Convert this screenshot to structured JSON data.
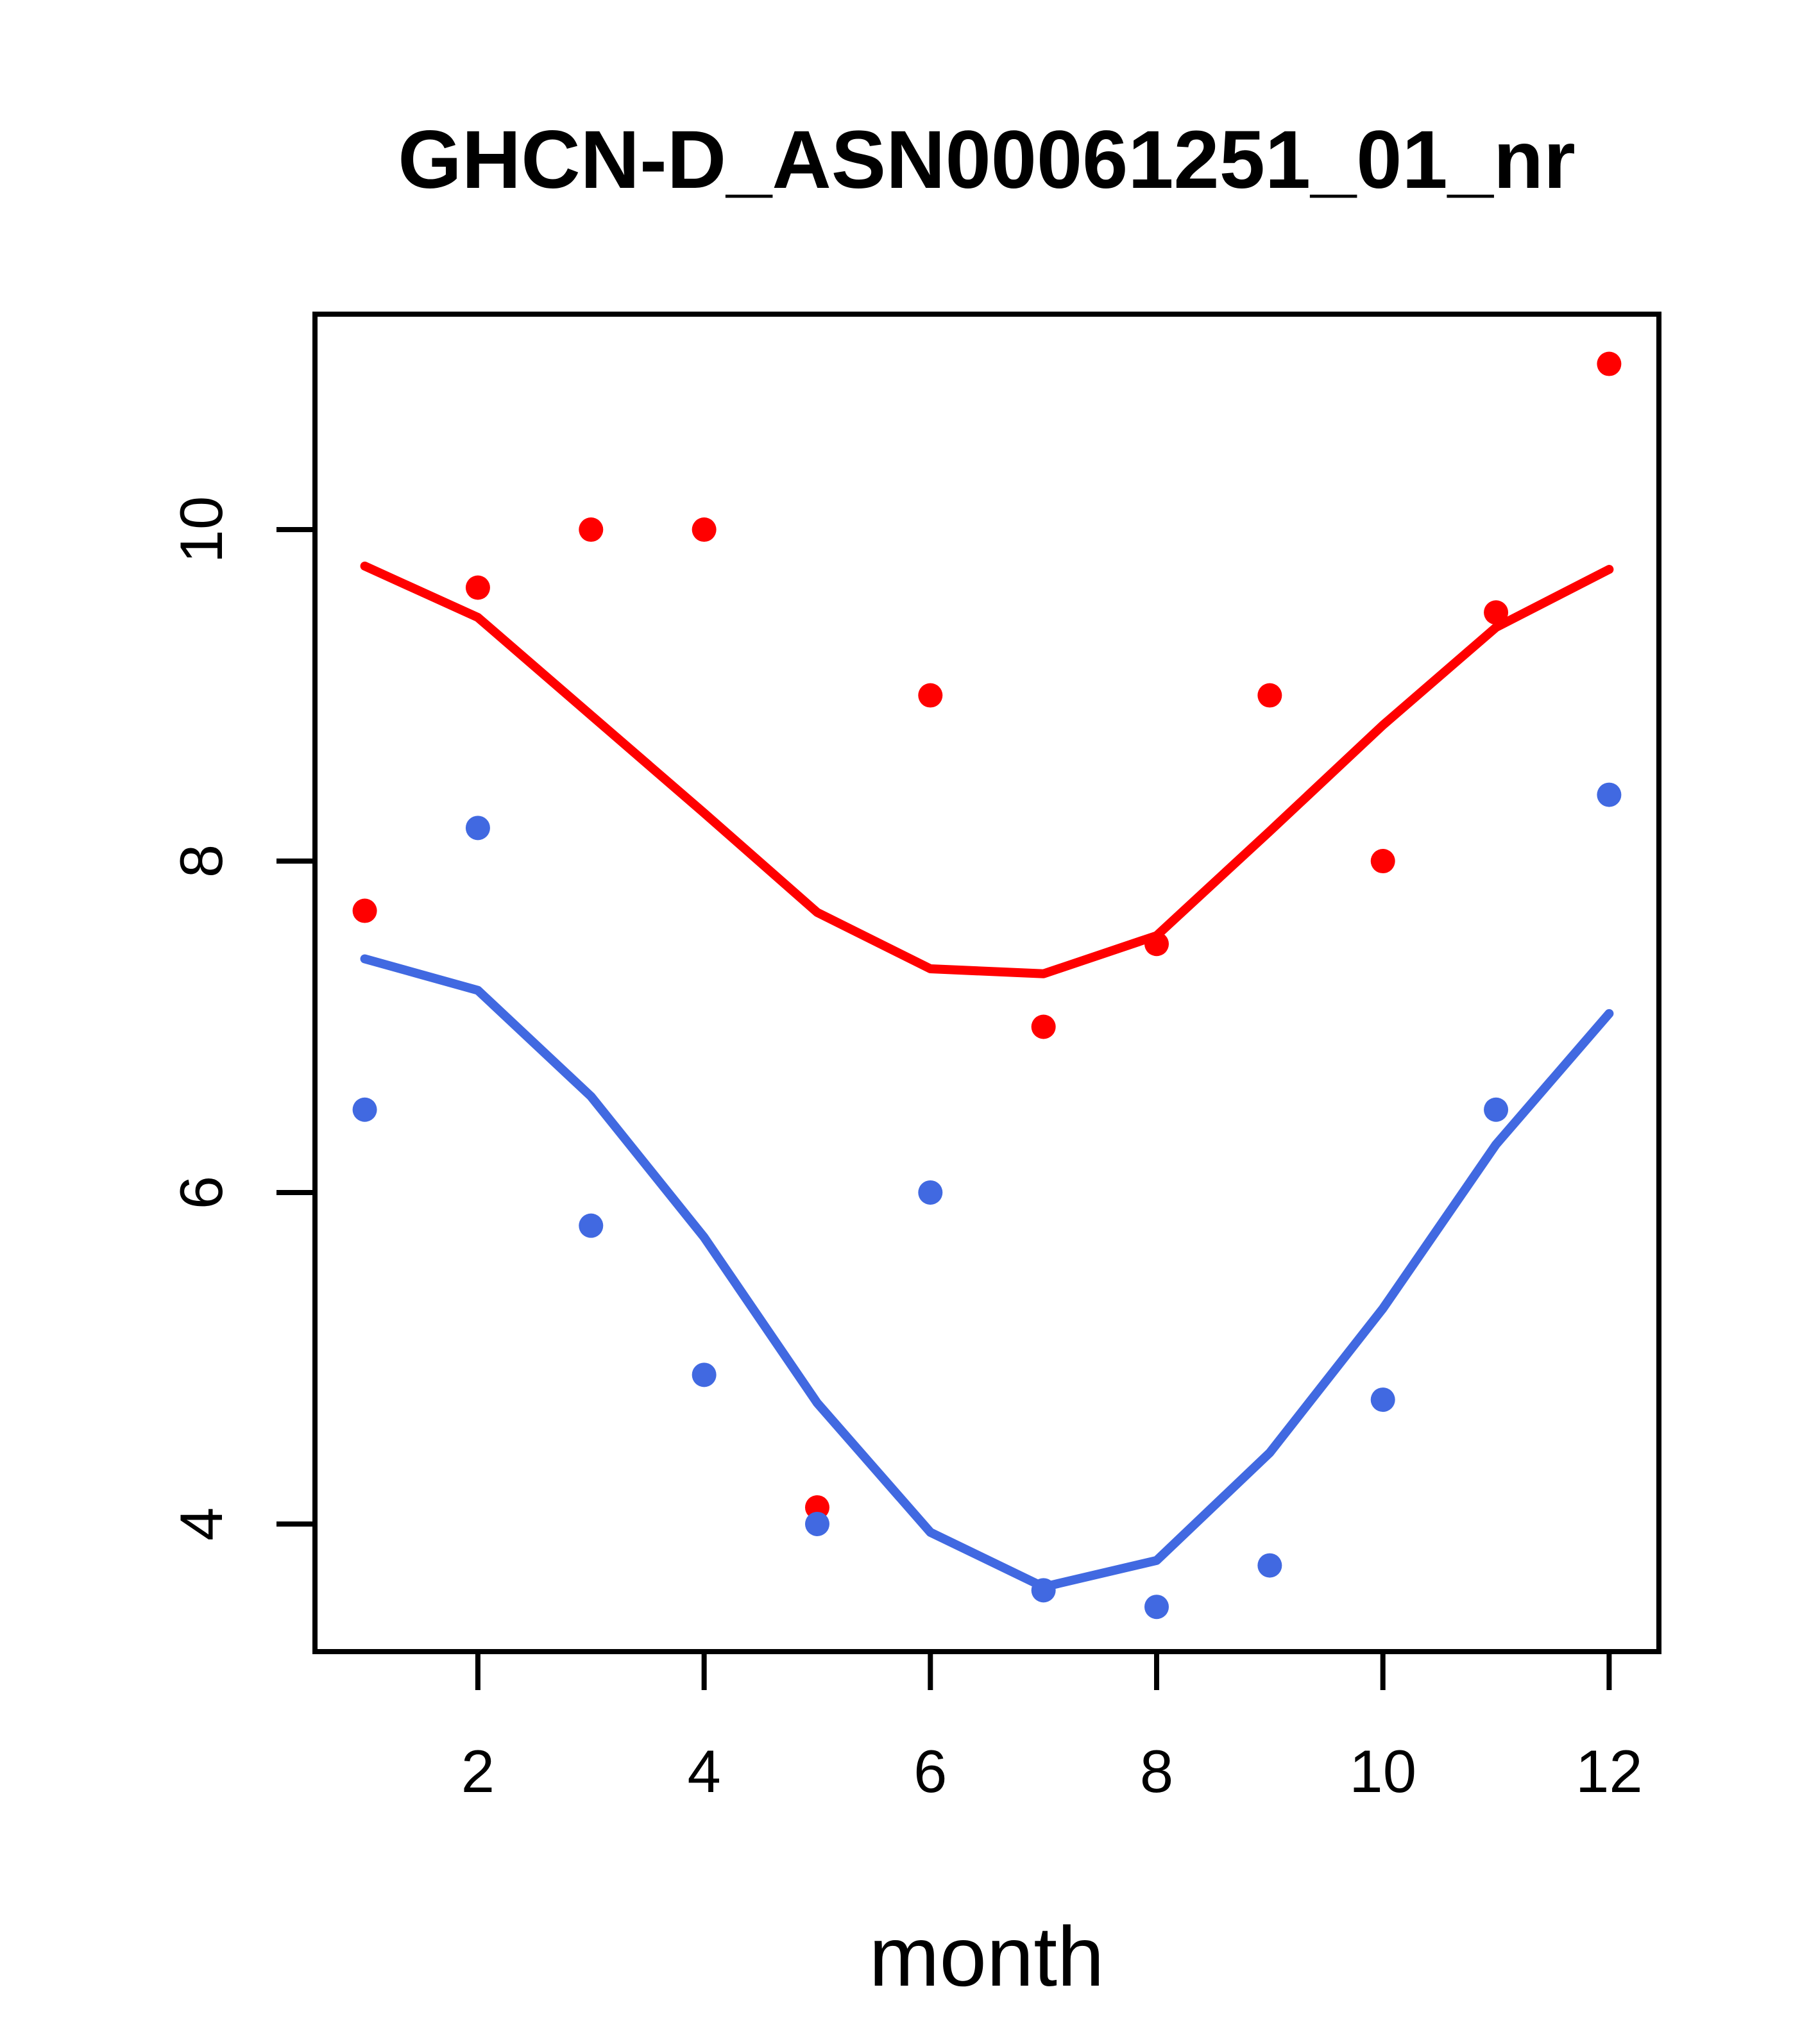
{
  "title": "GHCN-D_ASN00061251_01_nr",
  "xlabel": "month",
  "colors": {
    "red": "#FF0000",
    "blue": "#4169E1",
    "axis": "#000000",
    "background": "#FFFFFF"
  },
  "chart_data": {
    "type": "scatter",
    "title": "GHCN-D_ASN00061251_01_nr",
    "xlabel": "month",
    "ylabel": "",
    "x": [
      1,
      2,
      3,
      4,
      5,
      6,
      7,
      8,
      9,
      10,
      11,
      12
    ],
    "xticks": [
      2,
      4,
      6,
      8,
      10,
      12
    ],
    "yticks": [
      4,
      6,
      8,
      10
    ],
    "xlim": [
      0.56,
      12.44
    ],
    "ylim": [
      3.23,
      11.3
    ],
    "grid": false,
    "legend": "none",
    "series": [
      {
        "name": "red-points",
        "kind": "points",
        "color": "#FF0000",
        "values": [
          7.7,
          9.65,
          10.0,
          10.0,
          4.1,
          9.0,
          7.0,
          7.5,
          9.0,
          8.0,
          9.5,
          11.0
        ]
      },
      {
        "name": "blue-points",
        "kind": "points",
        "color": "#4169E1",
        "values": [
          6.5,
          8.2,
          5.8,
          4.9,
          4.0,
          6.0,
          3.6,
          3.5,
          3.75,
          4.75,
          6.5,
          8.4
        ]
      },
      {
        "name": "red-smooth-line",
        "kind": "line",
        "color": "#FF0000",
        "values": [
          9.78,
          9.47,
          8.88,
          8.29,
          7.69,
          7.35,
          7.32,
          7.55,
          8.18,
          8.82,
          9.41,
          9.76
        ]
      },
      {
        "name": "blue-smooth-line",
        "kind": "line",
        "color": "#4169E1",
        "values": [
          7.41,
          7.22,
          6.58,
          5.73,
          4.73,
          3.95,
          3.62,
          3.78,
          4.43,
          5.3,
          6.29,
          7.08
        ]
      }
    ]
  }
}
